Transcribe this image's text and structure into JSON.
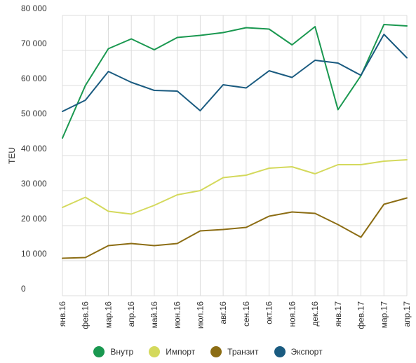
{
  "chart_data": {
    "type": "line",
    "xlabel": "",
    "ylabel": "TEU",
    "ylim": [
      0,
      80000
    ],
    "yticks": [
      0,
      10000,
      20000,
      30000,
      40000,
      50000,
      60000,
      70000,
      80000
    ],
    "ytick_labels": [
      "0",
      "10 000",
      "20 000",
      "30 000",
      "40 000",
      "50 000",
      "60 000",
      "70 000",
      "80 000"
    ],
    "categories": [
      "янв.16",
      "фев.16",
      "мар.16",
      "апр.16",
      "май.16",
      "июн.16",
      "июл.16",
      "авг.16",
      "сен.16",
      "окт.16",
      "ноя.16",
      "дек.16",
      "янв.17",
      "фев.17",
      "мар.17",
      "апр.17"
    ],
    "grid": "vertical",
    "legend_position": "bottom",
    "series": [
      {
        "name": "Внутр",
        "color": "#1a9850",
        "values": [
          45000,
          60000,
          70500,
          73300,
          70200,
          73700,
          74300,
          75100,
          76500,
          76100,
          71600,
          76800,
          53100,
          62800,
          77400,
          77000
        ]
      },
      {
        "name": "Импорт",
        "color": "#d4d95c",
        "values": [
          25200,
          28100,
          24100,
          23300,
          25800,
          28800,
          30000,
          33700,
          34400,
          36400,
          36800,
          34800,
          37400,
          37400,
          38400,
          38800
        ]
      },
      {
        "name": "Транзит",
        "color": "#8c6d14",
        "values": [
          10700,
          10900,
          14300,
          14900,
          14300,
          14900,
          18500,
          18900,
          19500,
          22700,
          23900,
          23500,
          20300,
          16700,
          26100,
          27900
        ]
      },
      {
        "name": "Экспорт",
        "color": "#1a5b80",
        "values": [
          52600,
          55800,
          64000,
          60900,
          58600,
          58400,
          52800,
          60200,
          59300,
          64200,
          62300,
          67200,
          66400,
          62900,
          74600,
          67900
        ]
      }
    ]
  }
}
